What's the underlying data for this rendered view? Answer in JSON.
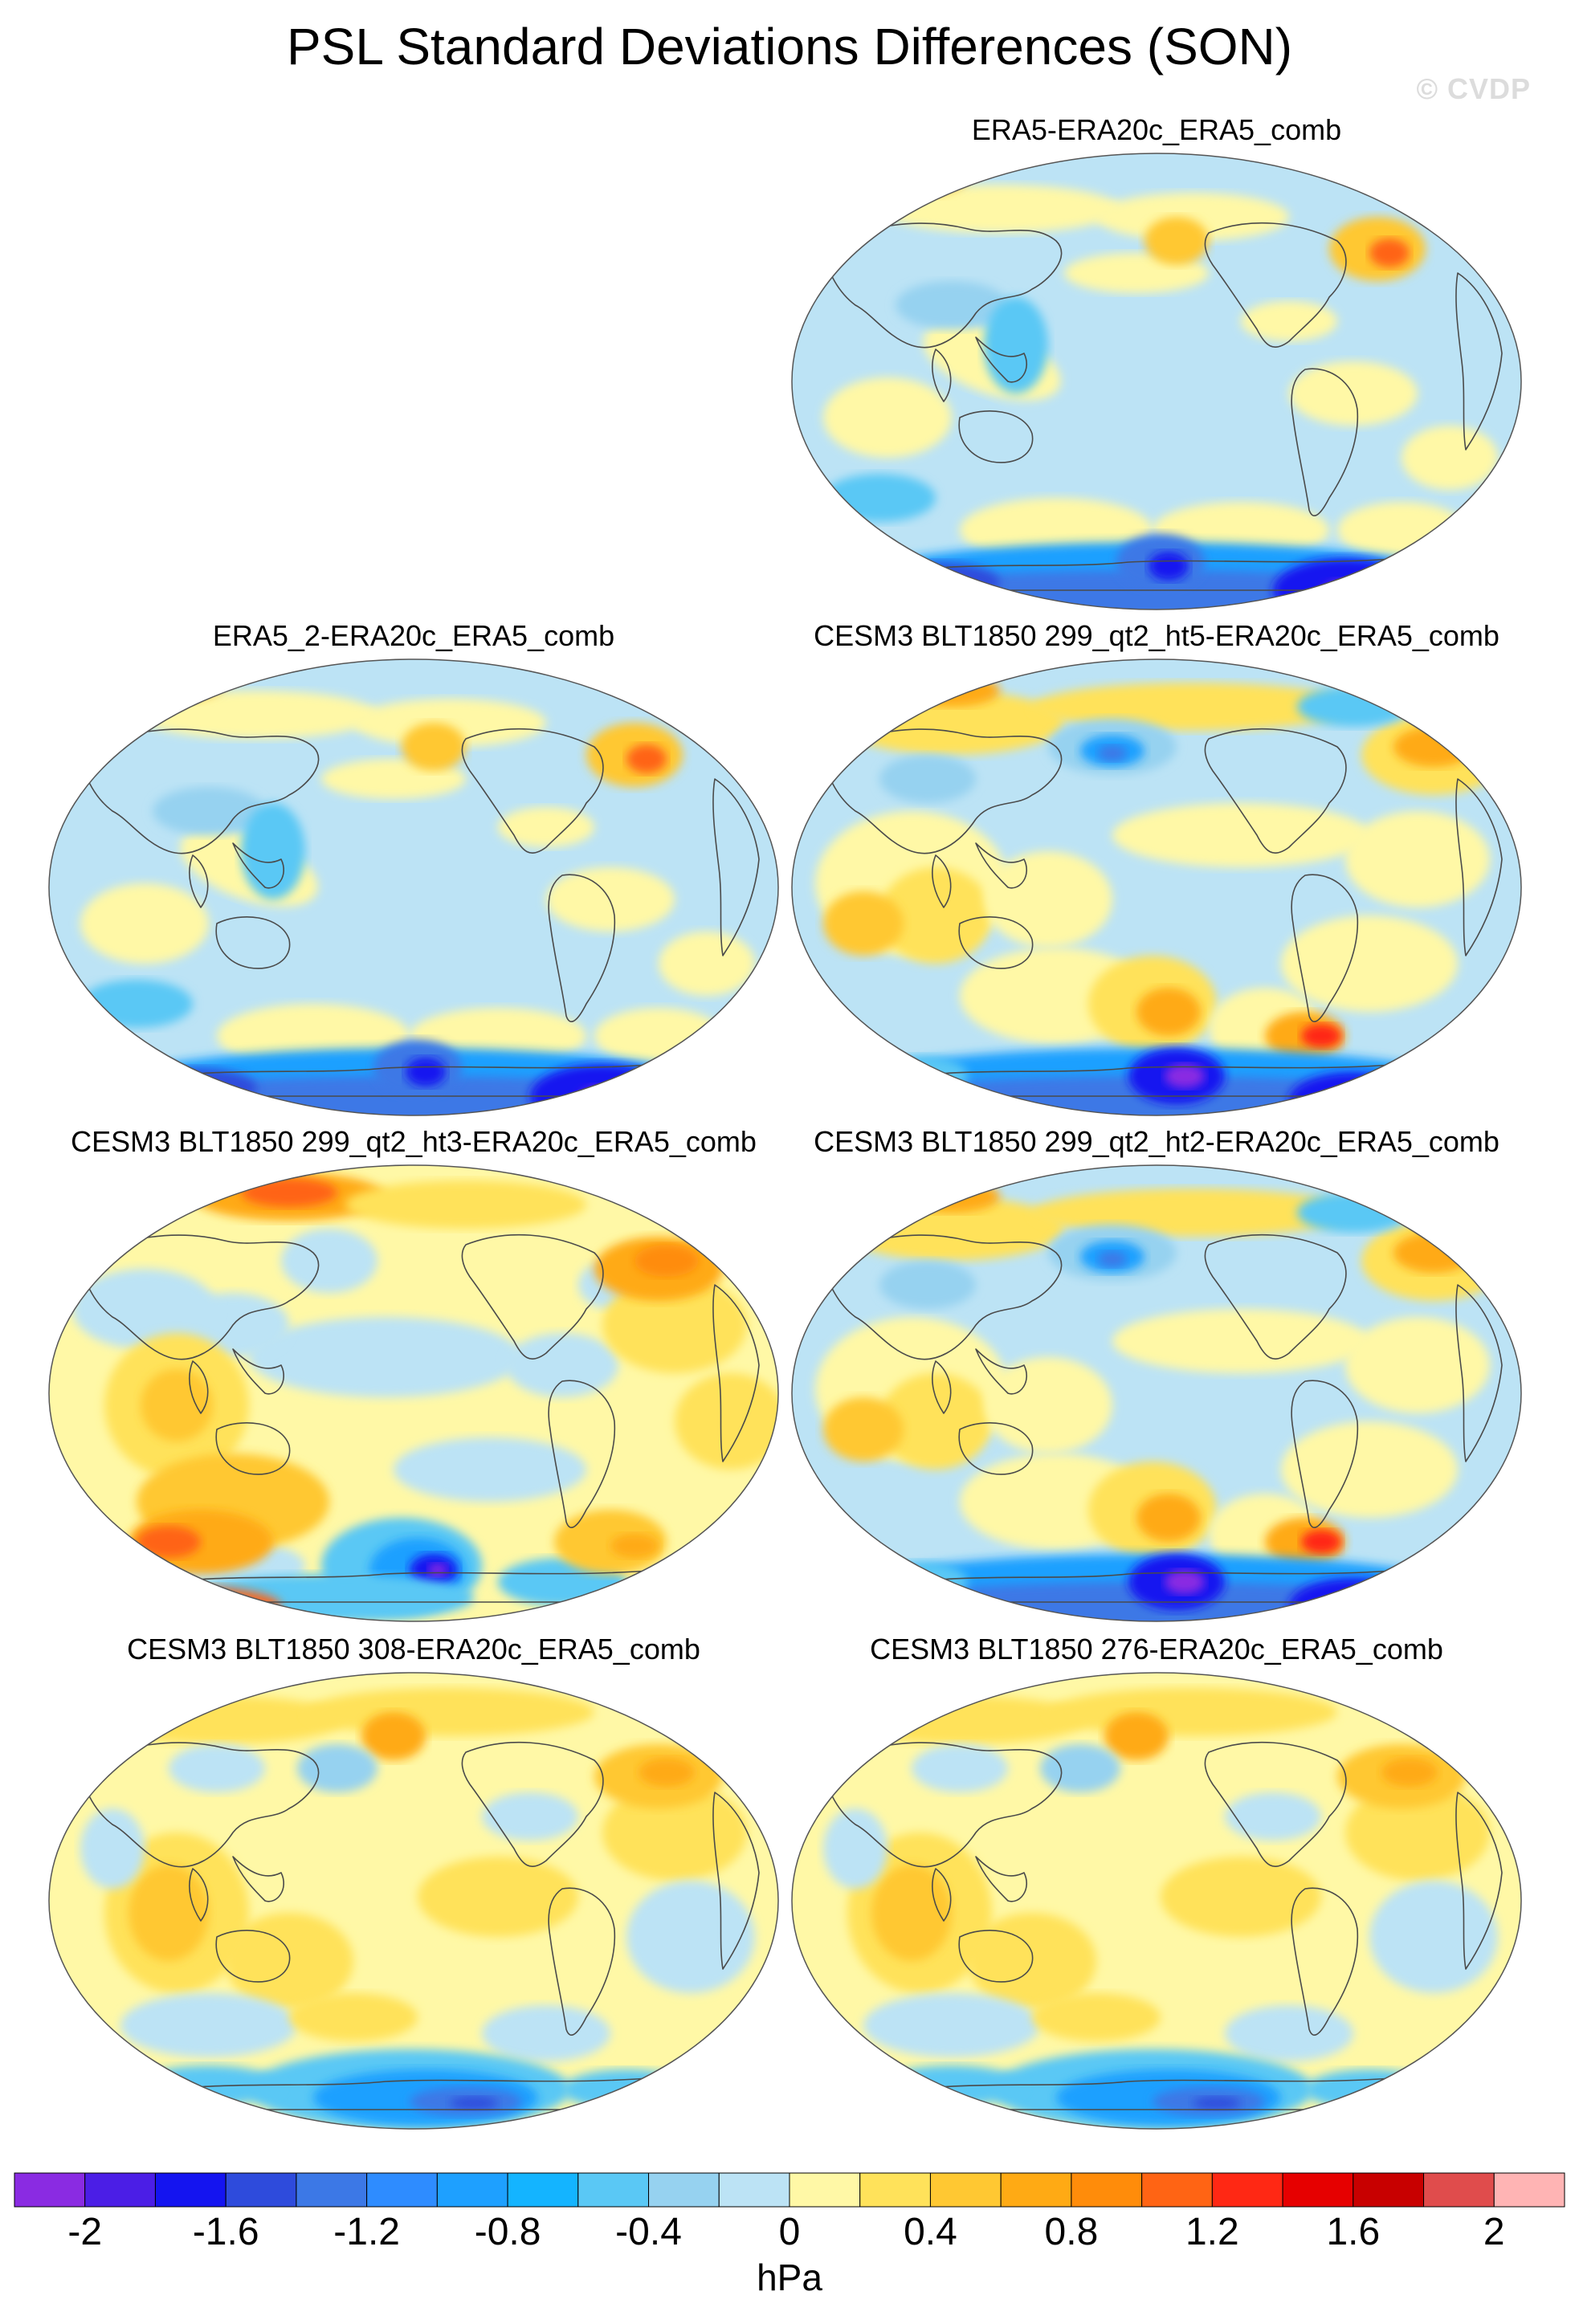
{
  "title": "PSL Standard Deviations Differences (SON)",
  "watermark": "© CVDP",
  "panels": [
    {
      "label": "ERA5-ERA20c_ERA5_comb",
      "pattern": "a"
    },
    {
      "label": "ERA5_2-ERA20c_ERA5_comb",
      "pattern": "a"
    },
    {
      "label": "CESM3 BLT1850 299_qt2_ht5-ERA20c_ERA5_comb",
      "pattern": "b"
    },
    {
      "label": "CESM3 BLT1850 299_qt2_ht3-ERA20c_ERA5_comb",
      "pattern": "c"
    },
    {
      "label": "CESM3 BLT1850 299_qt2_ht2-ERA20c_ERA5_comb",
      "pattern": "b"
    },
    {
      "label": "CESM3 BLT1850 308-ERA20c_ERA5_comb",
      "pattern": "d"
    },
    {
      "label": "CESM3 BLT1850 276-ERA20c_ERA5_comb",
      "pattern": "d"
    }
  ],
  "colorbar": {
    "unit": "hPa",
    "tick_labels": [
      "-2",
      "-1.6",
      "-1.2",
      "-0.8",
      "-0.4",
      "0",
      "0.4",
      "0.8",
      "1.2",
      "1.6",
      "2"
    ],
    "colors": [
      "#8a2be2",
      "#4b1ee6",
      "#1414f0",
      "#2e4bdc",
      "#3c78e6",
      "#2e8cff",
      "#1ea0ff",
      "#14b4ff",
      "#5ac8f5",
      "#96d2f0",
      "#bce3f5",
      "#fff8a6",
      "#ffe25a",
      "#ffc832",
      "#ffaa14",
      "#ff8c0a",
      "#ff6414",
      "#ff2814",
      "#e60000",
      "#c80000",
      "#e04c4c",
      "#ffb4b4"
    ]
  }
}
